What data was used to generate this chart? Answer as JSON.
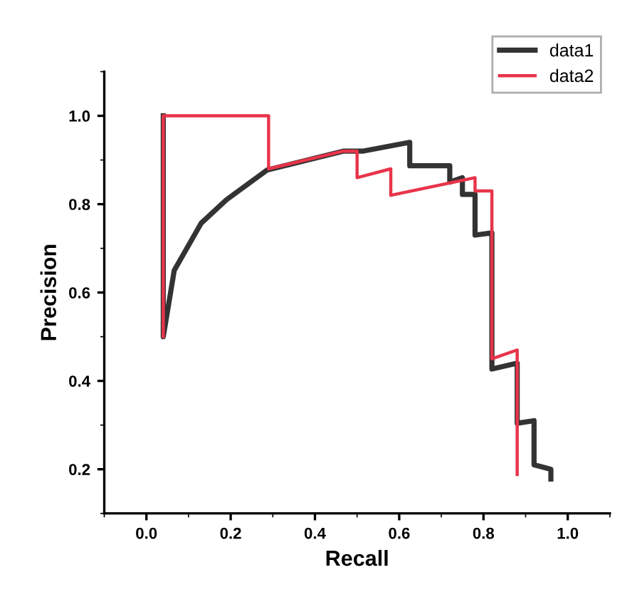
{
  "chart_data": {
    "type": "line",
    "xlabel": "Recall",
    "ylabel": "Precision",
    "xlim": [
      -0.1,
      1.1
    ],
    "ylim": [
      0.1,
      1.1
    ],
    "xticks": [
      {
        "value": 0.0,
        "label": "0.0"
      },
      0.2,
      0.4,
      0.6,
      0.8,
      {
        "value": 1.0,
        "label": "1.0"
      }
    ],
    "yticks": [
      0.2,
      0.4,
      0.6,
      0.8,
      {
        "value": 1.0,
        "label": "1.0"
      }
    ],
    "legend": "top right",
    "grid": false,
    "marker": "none",
    "line_style": "solid",
    "series": [
      {
        "name": "data1",
        "color": "#333333",
        "x": [
          0.04,
          0.04,
          0.066,
          0.13,
          0.19,
          0.286,
          0.467,
          0.513,
          0.625,
          0.625,
          0.72,
          0.72,
          0.75,
          0.75,
          0.78,
          0.78,
          0.82,
          0.82,
          0.88,
          0.88,
          0.92,
          0.92,
          0.96,
          0.96
        ],
        "values": [
          1.0,
          0.5,
          0.65,
          0.757,
          0.81,
          0.877,
          0.92,
          0.92,
          0.94,
          0.887,
          0.887,
          0.85,
          0.86,
          0.822,
          0.822,
          0.73,
          0.735,
          0.427,
          0.44,
          0.304,
          0.31,
          0.21,
          0.2,
          0.178
        ]
      },
      {
        "name": "data2",
        "color": "#e8344a",
        "x": [
          0.04,
          0.04,
          0.29,
          0.29,
          0.467,
          0.5,
          0.5,
          0.58,
          0.58,
          0.78,
          0.78,
          0.82,
          0.82,
          0.88,
          0.88
        ],
        "values": [
          0.5,
          1.0,
          1.0,
          0.88,
          0.92,
          0.92,
          0.86,
          0.88,
          0.82,
          0.86,
          0.83,
          0.83,
          0.45,
          0.47,
          0.188
        ]
      }
    ]
  }
}
